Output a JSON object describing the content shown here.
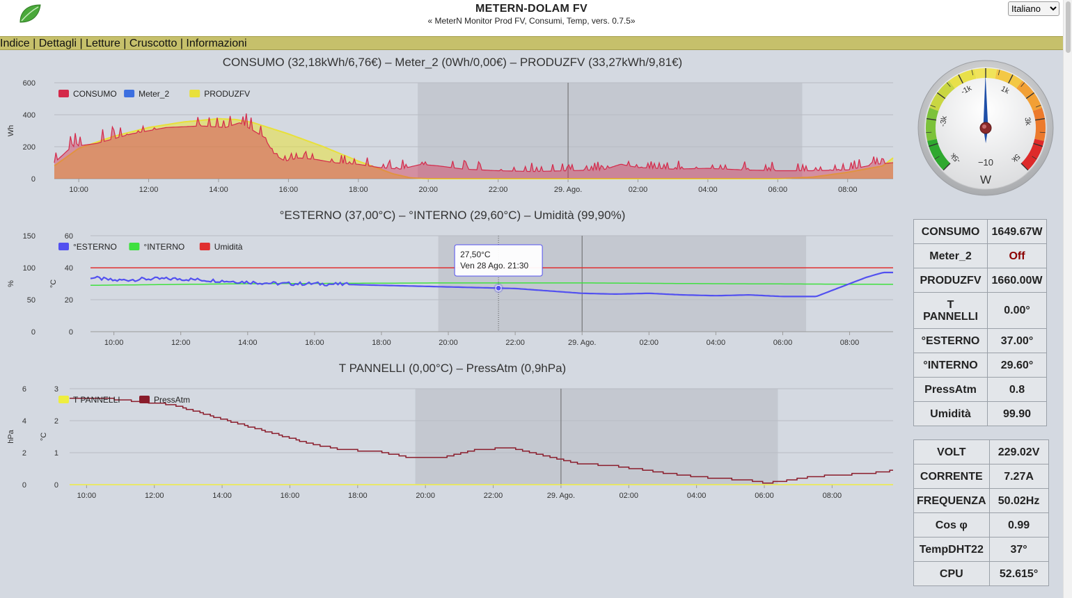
{
  "header": {
    "title": "METERN-DOLAM FV",
    "subtitle": "« MeterN Monitor Prod FV, Consumi, Temp, vers. 0.7.5»",
    "language": "Italiano",
    "logo_icon": "leaf-icon"
  },
  "nav": {
    "items": [
      "Indice",
      "Dettagli",
      "Letture",
      "Cruscotto",
      "Informazioni"
    ],
    "separator": " | "
  },
  "colors": {
    "consumo": "#d4294a",
    "meter2": "#3c6fe0",
    "produzfv": "#e8e03a",
    "esterno": "#5250f0",
    "interno": "#3fe03f",
    "umidita": "#e03030",
    "tpannelli": "#eeee40",
    "pressatm": "#8a1c2b",
    "navbar": "#c6c06b"
  },
  "chart_data": [
    {
      "type": "area",
      "title": "CONSUMO (32,18kWh/6,76€) – Meter_2 (0Wh/0,00€) – PRODUZFV (33,27kWh/9,81€)",
      "ylabel": "Wh",
      "ylim": [
        0,
        600
      ],
      "yticks": [
        0,
        200,
        400,
        600
      ],
      "x_start_hour": 9.3,
      "x_end_hour": 33.3,
      "xticks": [
        "10:00",
        "12:00",
        "14:00",
        "16:00",
        "18:00",
        "20:00",
        "22:00",
        "29. Ago.",
        "02:00",
        "04:00",
        "06:00",
        "08:00"
      ],
      "night_band_hours": [
        19.7,
        30.7
      ],
      "midnight_hour": 24,
      "legend": [
        "CONSUMO",
        "Meter_2",
        "PRODUZFV"
      ],
      "legend_position": "top-left",
      "series": [
        {
          "name": "PRODUZFV",
          "hours": [
            9.3,
            10,
            11,
            12,
            13,
            14,
            14.5,
            15,
            16,
            17,
            18,
            18.5,
            19,
            19.5,
            20,
            24,
            30,
            31,
            32,
            33,
            33.3
          ],
          "values": [
            80,
            190,
            265,
            320,
            355,
            375,
            370,
            350,
            280,
            200,
            110,
            70,
            30,
            5,
            0,
            0,
            0,
            10,
            40,
            80,
            130
          ]
        },
        {
          "name": "CONSUMO",
          "hours": [
            9.3,
            9.8,
            10.5,
            11.5,
            12.5,
            13.5,
            14.2,
            14.6,
            15.0,
            15.3,
            15.6,
            15.9,
            16.3,
            16.8,
            17.3,
            18.0,
            18.6,
            19.2,
            19.8,
            20.3,
            21.0,
            22.0,
            23.0,
            24.0,
            25.0,
            25.5,
            26.0,
            27.0,
            28.0,
            29.0,
            30.0,
            31.0,
            32.0,
            32.8,
            33.3
          ],
          "values": [
            100,
            200,
            220,
            280,
            320,
            330,
            320,
            350,
            300,
            260,
            150,
            110,
            130,
            120,
            100,
            90,
            70,
            60,
            90,
            80,
            60,
            50,
            45,
            50,
            55,
            90,
            70,
            60,
            65,
            55,
            50,
            50,
            55,
            90,
            100
          ]
        },
        {
          "name": "Meter_2",
          "hours": [],
          "values": []
        }
      ]
    },
    {
      "type": "line",
      "title": "°ESTERNO (37,00°C) – °INTERNO (29,60°C) – Umidità (99,90%)",
      "ylabel_left": "%",
      "ylabel_right": "°C",
      "ylim_pct": [
        0,
        150
      ],
      "ylim_degC": [
        0,
        60
      ],
      "yticks_pct": [
        0,
        50,
        100,
        150
      ],
      "yticks_degC": [
        0,
        20,
        40,
        60
      ],
      "x_start_hour": 9.3,
      "x_end_hour": 33.3,
      "xticks": [
        "10:00",
        "12:00",
        "14:00",
        "16:00",
        "18:00",
        "20:00",
        "22:00",
        "29. Ago.",
        "02:00",
        "04:00",
        "06:00",
        "08:00"
      ],
      "night_band_hours": [
        19.7,
        30.7
      ],
      "midnight_hour": 24,
      "legend": [
        "°ESTERNO",
        "°INTERNO",
        "Umidità"
      ],
      "legend_position": "top-left",
      "tooltip": {
        "value": "27,50°C",
        "date": "Ven 28 Ago. 21:30",
        "hour": 21.5
      },
      "series": [
        {
          "name": "°ESTERNO",
          "hours": [
            9.3,
            10,
            11,
            12,
            13,
            14,
            15,
            16,
            17,
            18,
            19,
            20,
            21,
            22,
            23,
            24,
            25,
            26,
            27,
            28,
            29,
            30,
            31,
            32,
            32.5,
            33,
            33.3
          ],
          "values": [
            34,
            32,
            33,
            33,
            32,
            31,
            30,
            30,
            29.5,
            29,
            28.5,
            28,
            27.5,
            27,
            25.5,
            24,
            23.5,
            24,
            23,
            22.5,
            23,
            22,
            22,
            30,
            34,
            37,
            37
          ]
        },
        {
          "name": "°INTERNO",
          "hours": [
            9.3,
            14,
            20,
            24,
            28,
            33.3
          ],
          "values": [
            29,
            30,
            30.5,
            30.5,
            30,
            29.6
          ]
        },
        {
          "name": "Umidità",
          "hours": [
            9.3,
            33.3
          ],
          "values": [
            99.9,
            99.9
          ]
        }
      ]
    },
    {
      "type": "line",
      "title": "T PANNELLI (0,00°C) – PressAtm (0,9hPa)",
      "ylabel_left": "hPa",
      "ylabel_right": "°C",
      "ylim_hpa": [
        0,
        6
      ],
      "ylim_degC": [
        0,
        3
      ],
      "yticks_hpa": [
        0,
        2,
        4,
        6
      ],
      "yticks_degC": [
        0,
        1,
        2,
        3
      ],
      "x_start_hour": 9.5,
      "x_end_hour": 33.8,
      "xticks": [
        "10:00",
        "12:00",
        "14:00",
        "16:00",
        "18:00",
        "20:00",
        "22:00",
        "29. Ago.",
        "02:00",
        "04:00",
        "06:00",
        "08:00"
      ],
      "night_band_hours": [
        19.7,
        30.4
      ],
      "midnight_hour": 24,
      "legend": [
        "T PANNELLI",
        "PressAtm"
      ],
      "legend_position": "top-left",
      "series": [
        {
          "name": "PressAtm",
          "hours": [
            9.5,
            10.5,
            11.5,
            12.5,
            13.5,
            14.5,
            15.5,
            16.5,
            17.5,
            18.5,
            19.5,
            20.5,
            21.5,
            22.5,
            23.5,
            24.5,
            25.5,
            26.5,
            27.5,
            28.5,
            29.5,
            30,
            30.5,
            31,
            32,
            33,
            33.5,
            33.8
          ],
          "values": [
            2.7,
            2.7,
            2.6,
            2.5,
            2.2,
            1.9,
            1.6,
            1.3,
            1.1,
            1.05,
            0.85,
            0.85,
            1.1,
            1.15,
            0.9,
            0.65,
            0.6,
            0.45,
            0.3,
            0.2,
            0.15,
            0.05,
            0.1,
            0.2,
            0.3,
            0.35,
            0.4,
            0.45
          ]
        },
        {
          "name": "T PANNELLI",
          "hours": [
            9.5,
            33.8
          ],
          "values": [
            0,
            0
          ]
        }
      ]
    }
  ],
  "gauge": {
    "unit": "W",
    "value": -10,
    "value_label": "−10",
    "scale_labels": [
      "-5k",
      "-3k",
      "-1k",
      "1k",
      "3k",
      "5k"
    ]
  },
  "stats_table_1": [
    {
      "label": "CONSUMO",
      "value": "1649.67W"
    },
    {
      "label": "Meter_2",
      "value": "Off"
    },
    {
      "label": "PRODUZFV",
      "value": "1660.00W"
    },
    {
      "label": "T PANNELLI",
      "value": "0.00°"
    },
    {
      "label": "°ESTERNO",
      "value": "37.00°"
    },
    {
      "label": "°INTERNO",
      "value": "29.60°"
    },
    {
      "label": "PressAtm",
      "value": "0.8"
    },
    {
      "label": "Umidità",
      "value": "99.90"
    }
  ],
  "stats_table_2": [
    {
      "label": "VOLT",
      "value": "229.02V"
    },
    {
      "label": "CORRENTE",
      "value": "7.27A"
    },
    {
      "label": "FREQUENZA",
      "value": "50.02Hz"
    },
    {
      "label": "Cos φ",
      "value": "0.99"
    },
    {
      "label": "TempDHT22",
      "value": "37°"
    },
    {
      "label": "CPU",
      "value": "52.615°"
    }
  ]
}
